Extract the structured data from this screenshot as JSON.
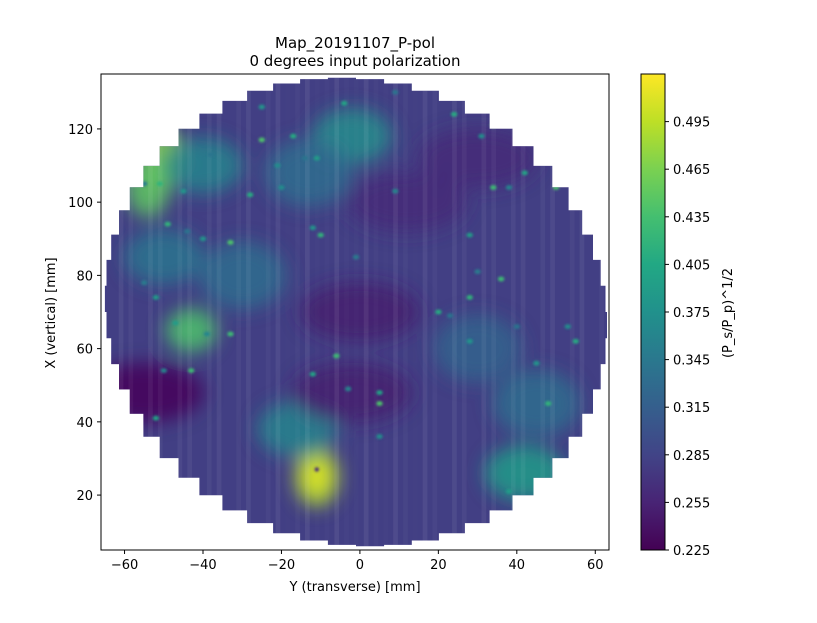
{
  "chart_data": {
    "type": "heatmap",
    "title": "Map_20191107_P-pol",
    "subtitle": "0 degrees input polarization",
    "xlabel": "Y (transverse) [mm]",
    "ylabel": "X (vertical) [mm]",
    "colorbar_label": "(P_s/P_p)^1/2",
    "colormap": "viridis",
    "xlim": [
      -66,
      63.5
    ],
    "ylim": [
      5,
      135
    ],
    "x_ticks": [
      -60,
      -40,
      -20,
      0,
      20,
      40,
      60
    ],
    "y_ticks": [
      20,
      40,
      60,
      80,
      100,
      120
    ],
    "colorbar_range": [
      0.225,
      0.525
    ],
    "colorbar_ticks": [
      "0.225",
      "0.255",
      "0.285",
      "0.315",
      "0.345",
      "0.375",
      "0.405",
      "0.435",
      "0.465",
      "0.495"
    ],
    "map_center": [
      -1,
      70
    ],
    "map_radius": 64,
    "background_level": 0.28,
    "features": [
      {
        "region": "lower-center hot spot",
        "x": -11,
        "y": 25,
        "value": 0.49
      },
      {
        "region": "lower-center halo",
        "x": -16,
        "y": 38,
        "value": 0.36
      },
      {
        "region": "left spot",
        "x": -43,
        "y": 65,
        "value": 0.44
      },
      {
        "region": "upper-left edge",
        "x": -50,
        "y": 112,
        "value": 0.47
      },
      {
        "region": "upper-left edge",
        "x": -54,
        "y": 104,
        "value": 0.45
      },
      {
        "region": "left streak",
        "x": -40,
        "y": 110,
        "value": 0.36
      },
      {
        "region": "left streak",
        "x": -50,
        "y": 85,
        "value": 0.34
      },
      {
        "region": "left region",
        "x": -30,
        "y": 80,
        "value": 0.33
      },
      {
        "region": "upper-center",
        "x": -2,
        "y": 118,
        "value": 0.37
      },
      {
        "region": "upper-center",
        "x": -13,
        "y": 108,
        "value": 0.33
      },
      {
        "region": "lower-right edge",
        "x": 42,
        "y": 26,
        "value": 0.39
      },
      {
        "region": "right-lower",
        "x": 45,
        "y": 45,
        "value": 0.33
      },
      {
        "region": "right-center",
        "x": 30,
        "y": 60,
        "value": 0.32
      },
      {
        "region": "center band",
        "x": 0,
        "y": 70,
        "value": 0.25
      },
      {
        "region": "left-lower dark",
        "x": -55,
        "y": 48,
        "value": 0.23
      },
      {
        "region": "center dark",
        "x": -2,
        "y": 48,
        "value": 0.25
      },
      {
        "region": "right dark",
        "x": 12,
        "y": 100,
        "value": 0.26
      },
      {
        "region": "right-upper dark",
        "x": 30,
        "y": 112,
        "value": 0.26
      }
    ]
  }
}
